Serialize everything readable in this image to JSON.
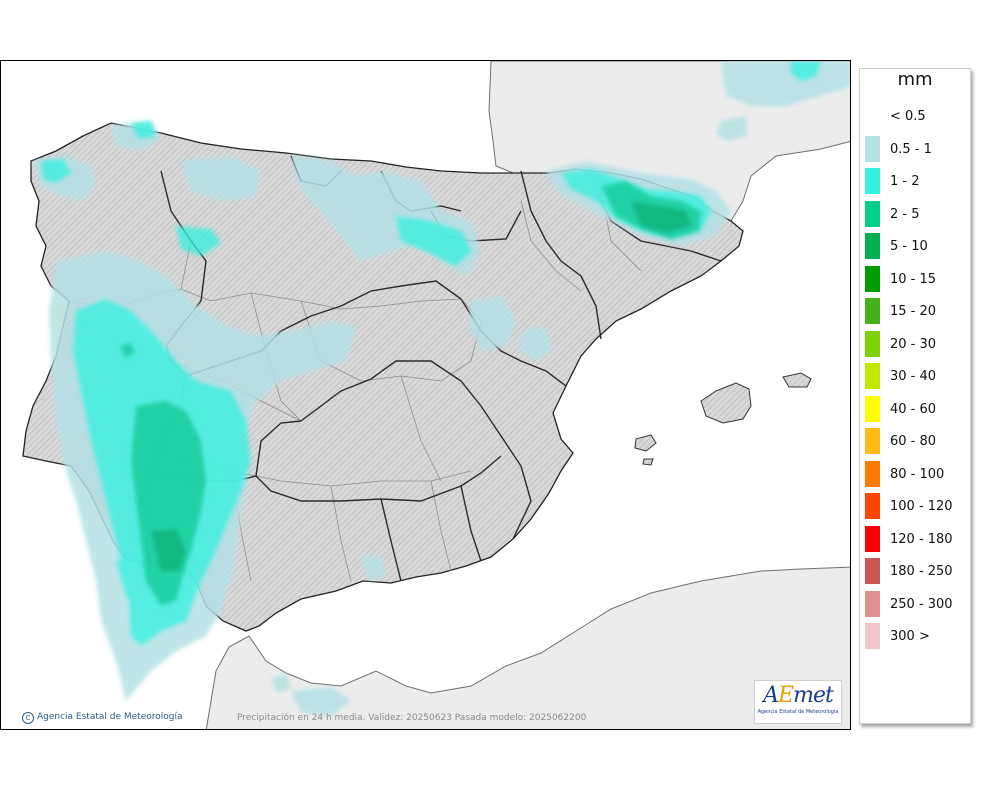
{
  "map": {
    "copyright": "Agencia Estatal de Meteorología",
    "validity": "Precipitación en 24 h media. Validez: 20250623 Pasada modelo: 2025062200",
    "logo": {
      "brand_a": "A",
      "brand_e": "E",
      "brand_rest": "met",
      "subtitle": "Agencia Estatal de Meteorología"
    }
  },
  "legend": {
    "title": "mm",
    "items": [
      {
        "label": "< 0.5",
        "color": null
      },
      {
        "label": "0.5 - 1",
        "color": "#b4e1e6"
      },
      {
        "label": "1 - 2",
        "color": "#33f2df"
      },
      {
        "label": "2 - 5",
        "color": "#00d08a"
      },
      {
        "label": "5 - 10",
        "color": "#00b050"
      },
      {
        "label": "10 - 15",
        "color": "#009d00"
      },
      {
        "label": "15 - 20",
        "color": "#44b214"
      },
      {
        "label": "20 - 30",
        "color": "#7ed100"
      },
      {
        "label": "30 - 40",
        "color": "#c1e800"
      },
      {
        "label": "40 - 60",
        "color": "#ffff00"
      },
      {
        "label": "60 - 80",
        "color": "#ffbb14"
      },
      {
        "label": "80 - 100",
        "color": "#ff7a00"
      },
      {
        "label": "100 - 120",
        "color": "#ff4400"
      },
      {
        "label": "120 - 180",
        "color": "#ff0000"
      },
      {
        "label": "180 - 250",
        "color": "#cc5555"
      },
      {
        "label": "250 - 300",
        "color": "#de8f8f"
      },
      {
        "label": "300 >",
        "color": "#efc7c7"
      }
    ]
  },
  "colors": {
    "sea": "#ffffff",
    "foreign_land": "#ececec",
    "iberia_land": "#d6d6d6",
    "border": "#222222",
    "internal_border": "#8e8e8e"
  }
}
